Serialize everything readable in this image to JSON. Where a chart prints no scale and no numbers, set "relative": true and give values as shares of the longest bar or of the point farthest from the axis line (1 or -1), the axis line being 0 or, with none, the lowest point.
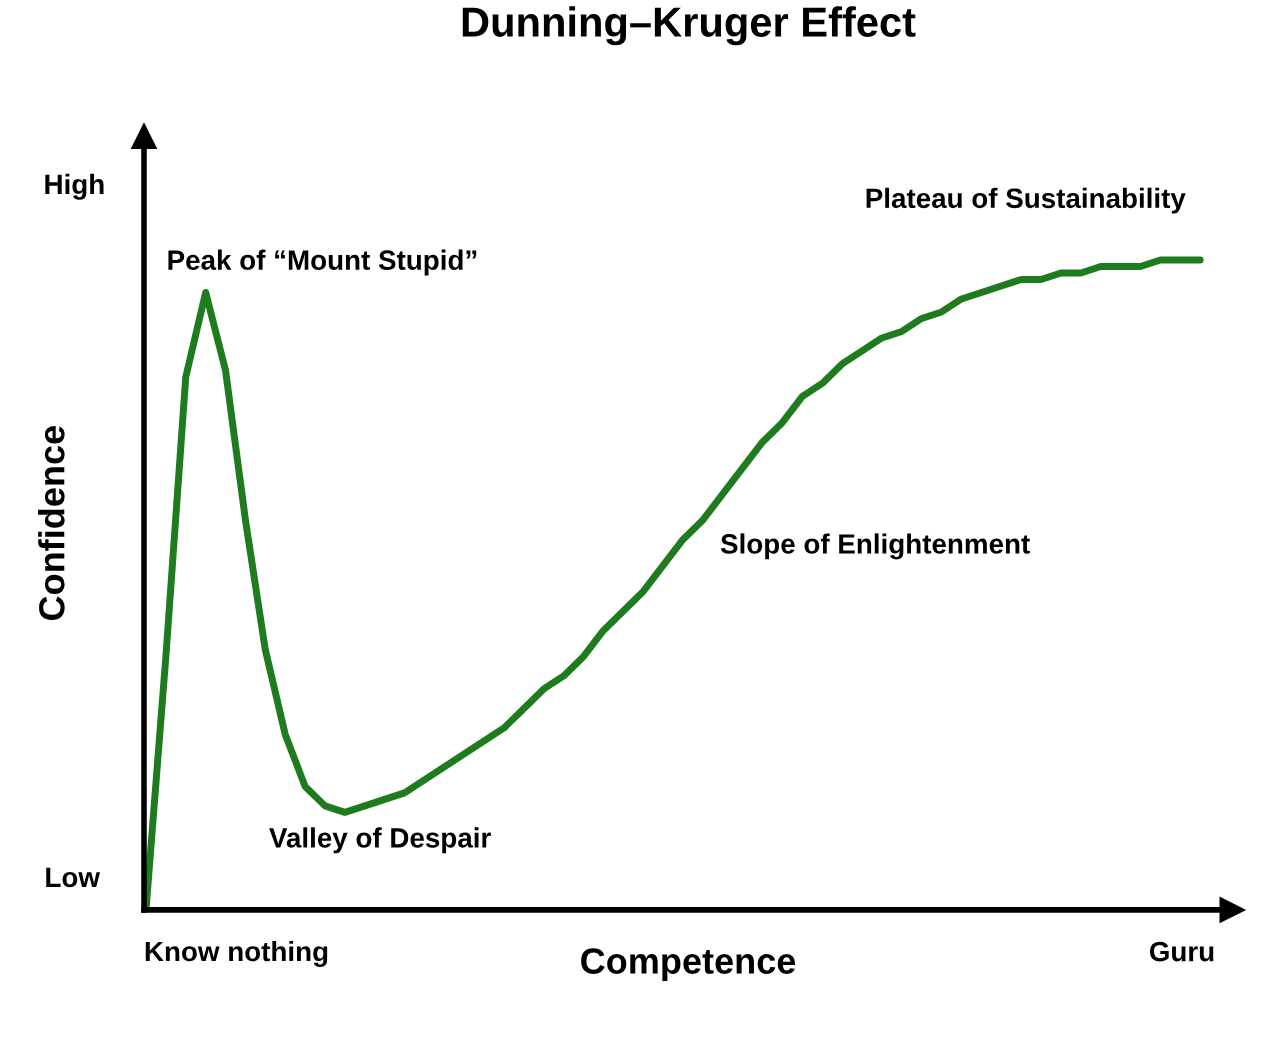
{
  "chart_data": {
    "type": "line",
    "title": "Dunning–Kruger Effect",
    "xlabel": "Competence",
    "ylabel": "Confidence",
    "relative": true,
    "categories": [
      null,
      null,
      null,
      null,
      null,
      null,
      null,
      null,
      null,
      null,
      null,
      null,
      null,
      null,
      null,
      null,
      null,
      null,
      null,
      null,
      null,
      null,
      null,
      null,
      null,
      null,
      null,
      null,
      null,
      null,
      null,
      null,
      null,
      null,
      null,
      null,
      null,
      null,
      null,
      null,
      null,
      null,
      null,
      null,
      null,
      null,
      null,
      null,
      null,
      null,
      null,
      null,
      null,
      null
    ],
    "grid": false,
    "marker": "none",
    "line_style": "solid",
    "series": [
      {
        "color": "#1e7b1e",
        "values": [
          0,
          0.39,
          0.82,
          0.95,
          0.83,
          0.6,
          0.4,
          0.27,
          0.19,
          0.16,
          0.15,
          0.16,
          0.17,
          0.18,
          0.2,
          0.22,
          0.24,
          0.26,
          0.28,
          0.31,
          0.34,
          0.36,
          0.39,
          0.43,
          0.46,
          0.49,
          0.53,
          0.57,
          0.6,
          0.64,
          0.68,
          0.72,
          0.75,
          0.79,
          0.81,
          0.84,
          0.86,
          0.88,
          0.89,
          0.91,
          0.92,
          0.94,
          0.95,
          0.96,
          0.97,
          0.97,
          0.98,
          0.98,
          0.99,
          0.99,
          0.99,
          1,
          1,
          1
        ]
      }
    ],
    "annotations": [
      "Peak of “Mount Stupid”",
      "Valley of Despair",
      "Slope of Enlightenment",
      "Plateau of Sustainability",
      "High",
      "Low",
      "Know nothing",
      "Guru"
    ]
  }
}
